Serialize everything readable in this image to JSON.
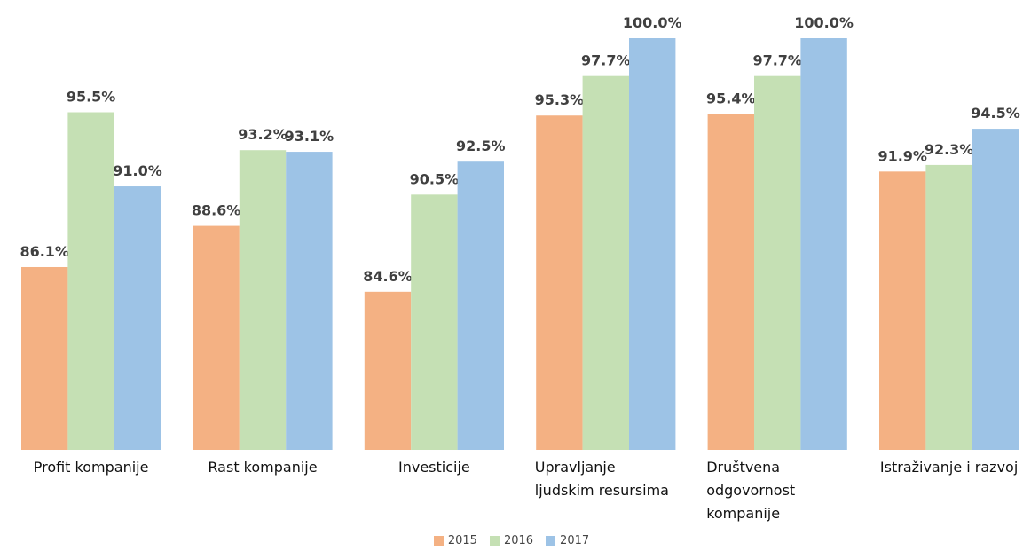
{
  "chart_data": {
    "type": "bar",
    "categories": [
      "Profit kompanije",
      "Rast kompanije",
      "Investicije",
      "Upravljanje ljudskim resursima",
      "Društvena odgovornost kompanije",
      "Istraživanje i razvoj"
    ],
    "series": [
      {
        "name": "2015",
        "color": "#f4b183",
        "values": [
          86.1,
          88.6,
          84.6,
          95.3,
          95.4,
          91.9
        ],
        "value_labels": [
          "86.1%",
          "88.6%",
          "84.6%",
          "95.3%",
          "95.4%",
          "91.9%"
        ]
      },
      {
        "name": "2016",
        "color": "#c5e0b4",
        "values": [
          95.5,
          93.2,
          90.5,
          97.7,
          97.7,
          92.3
        ],
        "value_labels": [
          "95.5%",
          "93.2%",
          "90.5%",
          "97.7%",
          "97.7%",
          "92.3%"
        ]
      },
      {
        "name": "2017",
        "color": "#9dc3e6",
        "values": [
          91.0,
          93.1,
          92.5,
          100.0,
          100.0,
          94.5
        ],
        "value_labels": [
          "91.0%",
          "93.1%",
          "92.5%",
          "100.0%",
          "100.0%",
          "94.5%"
        ]
      }
    ],
    "ylim": [
      75,
      100
    ]
  }
}
